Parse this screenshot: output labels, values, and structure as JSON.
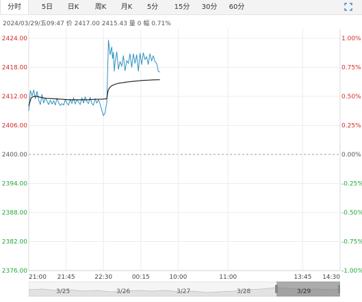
{
  "tabs": [
    {
      "label": "分时",
      "active": true
    },
    {
      "label": "5日",
      "active": false
    },
    {
      "label": "日K",
      "active": false
    },
    {
      "label": "周K",
      "active": false
    },
    {
      "label": "月K",
      "active": false
    },
    {
      "label": "5分",
      "active": false
    },
    {
      "label": "15分",
      "active": false
    },
    {
      "label": "30分",
      "active": false
    },
    {
      "label": "60分",
      "active": false
    }
  ],
  "info": {
    "datetime": "2024/03/29/五09:47",
    "price_label": "价",
    "price": "2417.00",
    "avg": "2415.43",
    "volume_label": "量",
    "volume": "0",
    "change_label": "幅",
    "change": "0.71%"
  },
  "colors": {
    "price_line": "#2a8fbd",
    "avg_line": "#222222",
    "up": "#d12b2b",
    "down": "#22a63c",
    "neutral": "#555555"
  },
  "chart_data": {
    "type": "line",
    "ylim": [
      2376,
      2424
    ],
    "base_price": 2400,
    "y_ticks_left": [
      "2424.00",
      "2418.00",
      "2412.00",
      "2406.00",
      "2400.00",
      "2394.00",
      "2388.00",
      "2382.00",
      "2376.00"
    ],
    "y_ticks_right": [
      "1.00%",
      "0.75%",
      "0.50%",
      "0.25%",
      "0.00%",
      "-0.25%",
      "-0.50%",
      "-0.75%",
      "-1.00%"
    ],
    "x_ticks": [
      "21:00",
      "21:45",
      "22:30",
      "00:15",
      "10:00",
      "11:00",
      "13:45",
      "14:30"
    ],
    "x_tick_index": [
      0,
      45,
      90,
      135,
      180,
      240,
      330,
      375
    ],
    "grid": true,
    "series": [
      {
        "x": [
          0,
          2,
          4,
          6,
          8,
          10,
          12,
          14,
          16,
          18,
          20,
          22,
          24,
          26,
          28,
          30,
          32,
          34,
          36,
          38,
          40,
          42,
          44,
          46,
          48,
          50,
          52,
          54,
          56,
          58,
          60,
          62,
          64,
          66,
          68,
          70,
          72,
          74,
          76,
          78,
          80,
          82,
          84,
          86,
          88,
          90,
          92,
          94,
          96,
          98,
          100,
          101,
          102,
          103,
          104,
          106,
          108,
          110,
          112,
          114,
          116,
          118,
          120,
          122,
          124,
          126,
          128,
          130,
          132,
          134,
          136,
          138,
          140,
          142,
          144,
          146,
          148,
          150,
          152,
          154,
          156,
          158
        ],
        "values": [
          2409.0,
          2413.2,
          2412.1,
          2413.3,
          2411.5,
          2413.0,
          2411.2,
          2410.3,
          2412.4,
          2410.6,
          2411.7,
          2411.0,
          2410.3,
          2411.2,
          2410.4,
          2411.1,
          2410.2,
          2411.6,
          2410.7,
          2410.1,
          2410.5,
          2410.2,
          2411.3,
          2410.6,
          2410.2,
          2411.4,
          2410.5,
          2411.7,
          2410.4,
          2411.3,
          2410.8,
          2410.3,
          2411.7,
          2410.6,
          2411.9,
          2410.9,
          2410.5,
          2411.8,
          2410.5,
          2410.2,
          2411.5,
          2410.6,
          2411.3,
          2410.4,
          2409.1,
          2408.0,
          2408.6,
          2410.8,
          2423.6,
          2420.6,
          2422.2,
          2419.8,
          2421.1,
          2417.2,
          2419.0,
          2421.2,
          2417.6,
          2419.2,
          2418.2,
          2420.4,
          2417.3,
          2419.4,
          2418.8,
          2420.8,
          2418.0,
          2420.8,
          2418.8,
          2420.6,
          2417.2,
          2420.9,
          2418.6,
          2421.0,
          2419.6,
          2420.2,
          2418.6,
          2420.8,
          2419.3,
          2420.4,
          2419.2,
          2418.8,
          2417.2,
          2417.0
        ]
      },
      {
        "x": [
          0,
          3,
          6,
          10,
          14,
          20,
          30,
          40,
          50,
          60,
          70,
          80,
          88,
          94,
          95,
          96,
          98,
          100,
          104,
          108,
          112,
          116,
          120,
          126,
          132,
          138,
          144,
          150,
          158
        ],
        "values": [
          2410.0,
          2411.7,
          2412.0,
          2412.0,
          2411.8,
          2411.6,
          2411.5,
          2411.4,
          2411.3,
          2411.3,
          2411.3,
          2411.4,
          2411.4,
          2411.5,
          2412.7,
          2413.4,
          2413.9,
          2414.2,
          2414.5,
          2414.7,
          2414.8,
          2414.9,
          2415.0,
          2415.1,
          2415.2,
          2415.3,
          2415.35,
          2415.4,
          2415.43
        ]
      }
    ]
  },
  "navigator": {
    "labels": [
      "3/25",
      "3/26",
      "3/27",
      "3/28",
      "3/29"
    ]
  }
}
